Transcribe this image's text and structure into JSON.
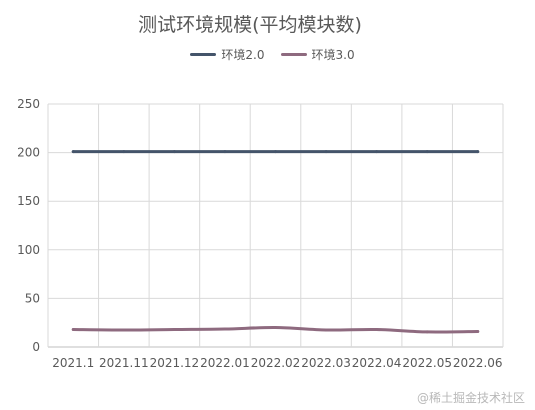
{
  "chart_data": {
    "type": "line",
    "title": "测试环境规模(平均模块数)",
    "categories": [
      "2021.1",
      "2021.11",
      "2021.12",
      "2022.01",
      "2022.02",
      "2022.03",
      "2022.04",
      "2022.05",
      "2022.06"
    ],
    "series": [
      {
        "name": "环境2.0",
        "color": "#44546a",
        "values": [
          201,
          201,
          201,
          201,
          201,
          201,
          201,
          201,
          201
        ]
      },
      {
        "name": "环境3.0",
        "color": "#8e6a7f",
        "values": [
          18,
          17.5,
          18,
          18.5,
          20,
          17.5,
          18,
          15.5,
          16
        ]
      }
    ],
    "ylim": [
      0,
      250
    ],
    "yticks": [
      0,
      50,
      100,
      150,
      200,
      250
    ],
    "grid": true,
    "legend_position": "top"
  },
  "watermark": "@稀土掘金技术社区"
}
